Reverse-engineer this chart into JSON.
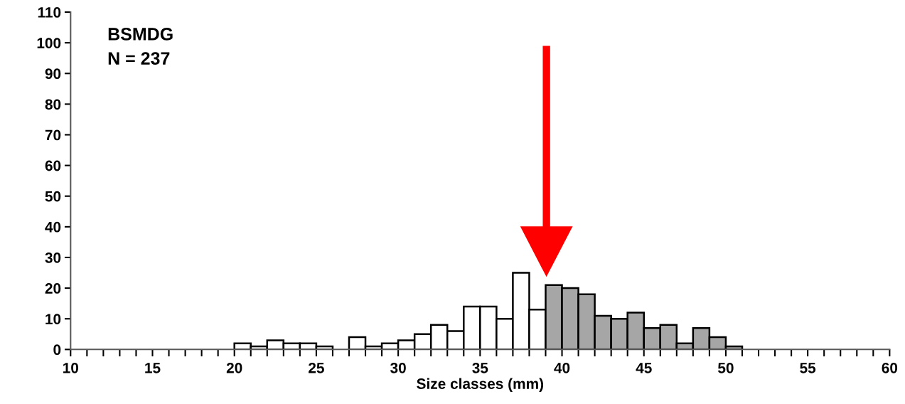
{
  "chart_data": {
    "type": "histogram",
    "xlabel": "Size classes (mm)",
    "annotations": [
      "BSMDG",
      "N = 237"
    ],
    "bins": [
      20,
      21,
      22,
      23,
      24,
      25,
      26,
      27,
      28,
      29,
      30,
      31,
      32,
      33,
      34,
      35,
      36,
      37,
      38,
      39,
      40,
      41,
      42,
      43,
      44,
      45,
      46,
      47,
      48,
      49,
      50,
      51
    ],
    "values": [
      2,
      1,
      3,
      2,
      2,
      1,
      0,
      4,
      1,
      2,
      3,
      5,
      8,
      6,
      14,
      14,
      10,
      25,
      13,
      21,
      20,
      18,
      11,
      10,
      12,
      7,
      8,
      2,
      7,
      4,
      1
    ],
    "colors": [
      "#ffffff",
      "#ffffff",
      "#ffffff",
      "#ffffff",
      "#ffffff",
      "#ffffff",
      "#ffffff",
      "#ffffff",
      "#ffffff",
      "#ffffff",
      "#ffffff",
      "#ffffff",
      "#ffffff",
      "#ffffff",
      "#ffffff",
      "#ffffff",
      "#ffffff",
      "#ffffff",
      "#ffffff",
      "#a6a6a6",
      "#a6a6a6",
      "#a6a6a6",
      "#a6a6a6",
      "#a6a6a6",
      "#a6a6a6",
      "#a6a6a6",
      "#a6a6a6",
      "#a6a6a6",
      "#a6a6a6",
      "#a6a6a6",
      "#a6a6a6"
    ],
    "xlim": [
      10,
      60
    ],
    "xticks": [
      10,
      15,
      20,
      25,
      30,
      35,
      40,
      45,
      50,
      55,
      60
    ],
    "ylim": [
      0,
      110
    ],
    "yticks": [
      0,
      10,
      20,
      30,
      40,
      50,
      60,
      70,
      80,
      90,
      100,
      110
    ],
    "grid": false
  }
}
